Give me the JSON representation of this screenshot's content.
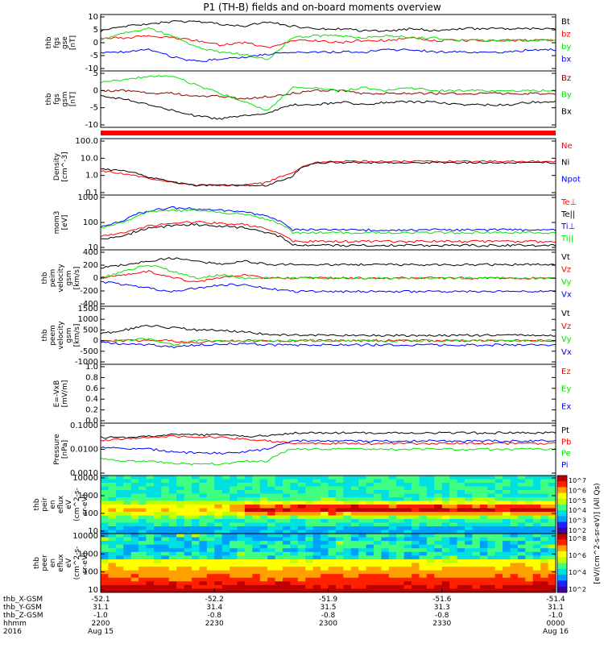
{
  "title": "P1 (TH-B) fields and on-board moments overview",
  "colors": {
    "black": "#000000",
    "red": "#ff0000",
    "green": "#00e600",
    "blue": "#0000ff",
    "darkred": "#8b0000"
  },
  "chart_data": [
    {
      "type": "line",
      "ylabel_lines": [
        "thb",
        "fgs",
        "gse",
        "[nT]"
      ],
      "yticks": [
        "10",
        "5",
        "0",
        "-5",
        "-10"
      ],
      "ylim": [
        -12,
        12
      ],
      "legend": [
        {
          "name": "Bt",
          "color": "black"
        },
        {
          "name": "bz",
          "color": "red"
        },
        {
          "name": "by",
          "color": "green"
        },
        {
          "name": "bx",
          "color": "blue"
        }
      ],
      "series": [
        {
          "name": "Bt",
          "color": "black",
          "values": [
            5,
            7,
            8,
            9,
            9,
            8,
            7,
            9,
            7,
            6,
            6,
            5,
            5,
            6,
            5,
            6,
            6,
            6,
            6,
            6
          ]
        },
        {
          "name": "bz",
          "color": "red",
          "values": [
            2,
            2,
            3,
            2,
            1,
            -1,
            0,
            -2,
            1,
            1,
            0,
            1,
            1,
            2,
            1,
            1,
            1,
            1,
            1,
            1
          ]
        },
        {
          "name": "by",
          "color": "green",
          "values": [
            1,
            4,
            6,
            3,
            -2,
            -4,
            -5,
            -7,
            2,
            3,
            3,
            2,
            3,
            2,
            2,
            1,
            1,
            1,
            1,
            1
          ]
        },
        {
          "name": "bx",
          "color": "blue",
          "values": [
            -4,
            -4,
            -3,
            -6,
            -8,
            -7,
            -6,
            -5,
            -4,
            -4,
            -4,
            -4,
            -3,
            -3,
            -4,
            -4,
            -4,
            -4,
            -3,
            -3
          ]
        }
      ]
    },
    {
      "type": "line",
      "ylabel_lines": [
        "thb",
        "fgs",
        "gsm",
        "[nT]"
      ],
      "yticks": [
        "5",
        "0",
        "-5",
        "-10"
      ],
      "ylim": [
        -12,
        8
      ],
      "legend": [
        {
          "name": "Bz",
          "color": "darkred"
        },
        {
          "name": "By",
          "color": "green"
        },
        {
          "name": "Bx",
          "color": "black"
        }
      ],
      "series": [
        {
          "name": "Bz",
          "color": "darkred",
          "values": [
            1,
            1,
            0,
            0,
            -1,
            -1,
            -2,
            -1,
            0,
            1,
            1,
            0,
            0,
            0,
            0,
            0,
            0,
            0,
            0,
            0
          ]
        },
        {
          "name": "By",
          "color": "green",
          "values": [
            4,
            5,
            6,
            6,
            3,
            0,
            -3,
            -6,
            2,
            2,
            1,
            2,
            1,
            2,
            1,
            1,
            1,
            1,
            1,
            1
          ]
        },
        {
          "name": "Bx",
          "color": "black",
          "values": [
            -1,
            -2,
            -4,
            -6,
            -8,
            -9,
            -8,
            -7,
            -4,
            -4,
            -3,
            -4,
            -3,
            -3,
            -3,
            -4,
            -4,
            -4,
            -3,
            -3
          ]
        }
      ]
    },
    {
      "type": "line",
      "log": true,
      "ylabel_lines": [
        "Density",
        "[cm^-3]"
      ],
      "yticks": [
        "100.0",
        "10.0",
        "1.0",
        "0.1"
      ],
      "ylim": [
        0.05,
        150
      ],
      "legend": [
        {
          "name": "Ne",
          "color": "red"
        },
        {
          "name": "Ni",
          "color": "black"
        },
        {
          "name": "Npot",
          "color": "blue"
        }
      ],
      "series": [
        {
          "name": "Ne",
          "color": "red",
          "values": [
            1.5,
            1,
            0.5,
            0.3,
            0.2,
            0.2,
            0.2,
            0.3,
            1,
            5,
            6,
            6,
            6,
            6,
            6,
            6,
            6,
            6,
            6,
            6
          ]
        },
        {
          "name": "Ni",
          "color": "black",
          "values": [
            2,
            1.5,
            0.6,
            0.3,
            0.2,
            0.2,
            0.2,
            0.2,
            0.6,
            5,
            5,
            5,
            5,
            5,
            5,
            5,
            5,
            5,
            5,
            5
          ]
        }
      ]
    },
    {
      "type": "line",
      "log": true,
      "ylabel_lines": [
        "mom3",
        "[eV]"
      ],
      "yticks": [
        "1000",
        "100",
        "10"
      ],
      "ylim": [
        5,
        1500
      ],
      "legend": [
        {
          "name": "Te⊥",
          "color": "red"
        },
        {
          "name": "Te||",
          "color": "black"
        },
        {
          "name": "Ti⊥",
          "color": "blue"
        },
        {
          "name": "Ti||",
          "color": "green"
        }
      ],
      "series": [
        {
          "name": "Ti⊥",
          "color": "blue",
          "values": [
            60,
            100,
            300,
            400,
            350,
            300,
            250,
            150,
            40,
            40,
            40,
            40,
            40,
            40,
            40,
            40,
            40,
            40,
            40,
            40
          ]
        },
        {
          "name": "Ti||",
          "color": "green",
          "values": [
            50,
            90,
            250,
            300,
            300,
            250,
            200,
            120,
            30,
            30,
            30,
            30,
            30,
            30,
            30,
            30,
            30,
            30,
            30,
            30
          ]
        },
        {
          "name": "Te⊥",
          "color": "red",
          "values": [
            20,
            30,
            60,
            80,
            90,
            80,
            70,
            40,
            12,
            12,
            12,
            12,
            12,
            12,
            12,
            12,
            12,
            12,
            12,
            12
          ]
        },
        {
          "name": "Te||",
          "color": "black",
          "values": [
            15,
            20,
            50,
            60,
            70,
            60,
            50,
            30,
            8,
            8,
            8,
            8,
            8,
            8,
            8,
            8,
            8,
            8,
            8,
            8
          ]
        }
      ]
    },
    {
      "type": "line",
      "ylabel_lines": [
        "thb",
        "peim",
        "velocity",
        "gsm",
        "[km/s]"
      ],
      "yticks": [
        "400",
        "200",
        "0",
        "-200",
        "-400"
      ],
      "ylim": [
        -420,
        420
      ],
      "legend": [
        {
          "name": "Vt",
          "color": "black"
        },
        {
          "name": "Vz",
          "color": "red"
        },
        {
          "name": "Vy",
          "color": "green"
        },
        {
          "name": "Vx",
          "color": "blue"
        }
      ],
      "series": [
        {
          "name": "Vt",
          "color": "black",
          "values": [
            150,
            200,
            250,
            300,
            250,
            200,
            250,
            200,
            200,
            200,
            200,
            200,
            200,
            200,
            200,
            200,
            200,
            200,
            200,
            200
          ]
        },
        {
          "name": "Vz",
          "color": "red",
          "values": [
            0,
            50,
            100,
            0,
            -50,
            0,
            50,
            0,
            0,
            0,
            0,
            0,
            0,
            0,
            0,
            0,
            0,
            0,
            0,
            0
          ]
        },
        {
          "name": "Vy",
          "color": "green",
          "values": [
            0,
            100,
            200,
            100,
            0,
            50,
            0,
            0,
            0,
            0,
            0,
            0,
            0,
            0,
            0,
            0,
            0,
            0,
            0,
            0
          ]
        },
        {
          "name": "Vx",
          "color": "blue",
          "values": [
            -50,
            -100,
            -150,
            -200,
            -150,
            -100,
            -100,
            -150,
            -200,
            -200,
            -200,
            -200,
            -200,
            -200,
            -200,
            -200,
            -200,
            -200,
            -200,
            -200
          ]
        }
      ]
    },
    {
      "type": "line",
      "ylabel_lines": [
        "thb",
        "peem",
        "velocity",
        "gsm",
        "[km/s]"
      ],
      "yticks": [
        "1500",
        "1000",
        "500",
        "0",
        "-500",
        "-1000"
      ],
      "ylim": [
        -1100,
        1600
      ],
      "legend": [
        {
          "name": "Vt",
          "color": "black"
        },
        {
          "name": "Vz",
          "color": "red"
        },
        {
          "name": "Vy",
          "color": "green"
        },
        {
          "name": "Vx",
          "color": "blue"
        }
      ],
      "series": [
        {
          "name": "Vt",
          "color": "black",
          "values": [
            300,
            500,
            700,
            600,
            500,
            500,
            400,
            300,
            250,
            250,
            250,
            250,
            250,
            250,
            250,
            250,
            250,
            250,
            250,
            250
          ]
        },
        {
          "name": "Vz",
          "color": "red",
          "values": [
            0,
            0,
            0,
            0,
            -100,
            0,
            0,
            0,
            0,
            0,
            0,
            0,
            0,
            0,
            0,
            0,
            0,
            0,
            0,
            0
          ]
        },
        {
          "name": "Vy",
          "color": "green",
          "values": [
            0,
            0,
            100,
            -200,
            0,
            0,
            0,
            0,
            0,
            0,
            0,
            0,
            0,
            0,
            0,
            0,
            0,
            0,
            0,
            0
          ]
        },
        {
          "name": "Vx",
          "color": "blue",
          "values": [
            -100,
            -150,
            -200,
            -300,
            -200,
            -150,
            -150,
            -200,
            -200,
            -200,
            -200,
            -200,
            -200,
            -200,
            -200,
            -200,
            -200,
            -200,
            -200,
            -200
          ]
        }
      ]
    },
    {
      "type": "line",
      "ylabel_lines": [
        "E=-VxB",
        "[mV/m]"
      ],
      "yticks": [
        "1.0",
        "0.8",
        "0.6",
        "0.4",
        "0.2",
        "0.0"
      ],
      "ylim": [
        0,
        1
      ],
      "legend": [
        {
          "name": "Ez",
          "color": "red"
        },
        {
          "name": "Ey",
          "color": "green"
        },
        {
          "name": "Ex",
          "color": "blue"
        }
      ],
      "series": []
    },
    {
      "type": "line",
      "log": true,
      "ylabel_lines": [
        "Pressure",
        "[nPa]"
      ],
      "yticks": [
        "0.1000",
        "0.0100",
        "0.0010"
      ],
      "ylim": [
        0.0004,
        0.15
      ],
      "legend": [
        {
          "name": "Pt",
          "color": "black"
        },
        {
          "name": "Pb",
          "color": "red"
        },
        {
          "name": "Pe",
          "color": "green"
        },
        {
          "name": "Pi",
          "color": "blue"
        }
      ],
      "series": [
        {
          "name": "Pt",
          "color": "black",
          "values": [
            0.03,
            0.03,
            0.035,
            0.04,
            0.04,
            0.04,
            0.035,
            0.035,
            0.05,
            0.05,
            0.05,
            0.05,
            0.05,
            0.05,
            0.05,
            0.05,
            0.05,
            0.05,
            0.05,
            0.05
          ]
        },
        {
          "name": "Pb",
          "color": "red",
          "values": [
            0.02,
            0.025,
            0.03,
            0.035,
            0.03,
            0.03,
            0.025,
            0.02,
            0.015,
            0.015,
            0.015,
            0.015,
            0.015,
            0.015,
            0.015,
            0.015,
            0.015,
            0.015,
            0.015,
            0.015
          ]
        },
        {
          "name": "Pi",
          "color": "blue",
          "values": [
            0.01,
            0.008,
            0.008,
            0.006,
            0.005,
            0.005,
            0.006,
            0.008,
            0.02,
            0.02,
            0.02,
            0.02,
            0.02,
            0.02,
            0.02,
            0.02,
            0.02,
            0.02,
            0.02,
            0.02
          ]
        },
        {
          "name": "Pe",
          "color": "green",
          "values": [
            0.003,
            0.002,
            0.002,
            0.0015,
            0.0015,
            0.0015,
            0.002,
            0.002,
            0.008,
            0.008,
            0.008,
            0.008,
            0.008,
            0.008,
            0.008,
            0.008,
            0.008,
            0.008,
            0.008,
            0.008
          ]
        }
      ]
    },
    {
      "type": "heatmap",
      "ylabel_lines": [
        "thb",
        "peir",
        "en",
        "eflux",
        "eV",
        "(cm^2-s-",
        "sr-eV)"
      ],
      "yticks": [
        "10000",
        "1000",
        "100",
        "10"
      ],
      "colorbar_ticks": [
        "10^7",
        "10^6",
        "10^5",
        "10^4",
        "10^3",
        "10^2"
      ]
    },
    {
      "type": "heatmap",
      "ylabel_lines": [
        "thb",
        "peer",
        "en",
        "eflux",
        "eV",
        "(cm^2-s-",
        "sr-eV)"
      ],
      "yticks": [
        "10000",
        "1000",
        "100",
        "10"
      ],
      "colorbar_ticks": [
        "10^8",
        "10^6",
        "10^4",
        "10^2"
      ]
    }
  ],
  "colorbar_label": "[eV/(cm^2-s-sr-eV)] (All Qs)",
  "footer": {
    "rows": [
      {
        "label": "thb_X-GSM",
        "values": [
          "-52.1",
          "-52.2",
          "-51.9",
          "-51.6",
          "-51.4"
        ]
      },
      {
        "label": "thb_Y-GSM",
        "values": [
          "31.1",
          "31.4",
          "31.5",
          "31.3",
          "31.1"
        ]
      },
      {
        "label": "thb_Z-GSM",
        "values": [
          "-1.0",
          "-0.8",
          "-0.8",
          "-0.8",
          "-1.0"
        ]
      },
      {
        "label": "hhmm",
        "values": [
          "2200",
          "2230",
          "2300",
          "2330",
          "0000"
        ]
      },
      {
        "label": "2016",
        "values": [
          "Aug 15",
          "",
          "",
          "",
          "Aug 16"
        ]
      }
    ]
  }
}
